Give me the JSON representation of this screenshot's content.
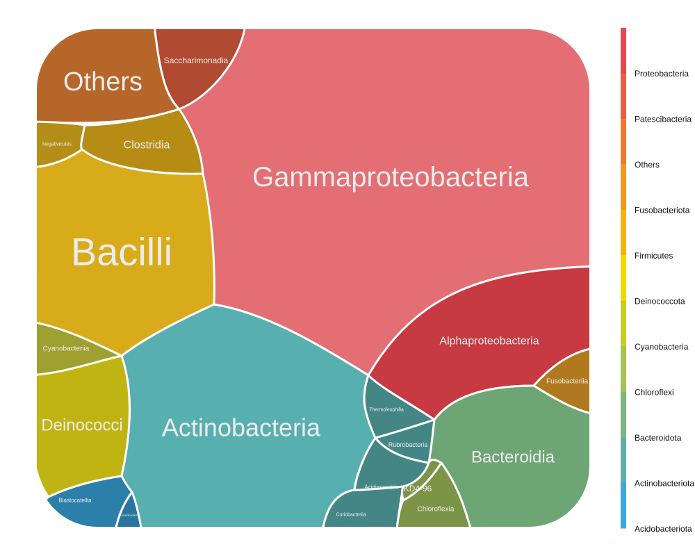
{
  "chart_data": {
    "type": "voronoi-treemap",
    "title": "",
    "cells": [
      {
        "label": "Gammaproteobacteria",
        "group": "Proteobacteria",
        "color": "#e36e74"
      },
      {
        "label": "Alphaproteobacteria",
        "group": "Proteobacteria",
        "color": "#c73a42"
      },
      {
        "label": "Saccharimonadia",
        "group": "Patescibacteria",
        "color": "#b04a30"
      },
      {
        "label": "Others",
        "group": "Others",
        "color": "#b7662a"
      },
      {
        "label": "Fusobacteriia",
        "group": "Fusobacteriota",
        "color": "#b0781f"
      },
      {
        "label": "Negativicutes",
        "group": "Firmicutes",
        "color": "#b48e17"
      },
      {
        "label": "Clostridia",
        "group": "Firmicutes",
        "color": "#b68c15"
      },
      {
        "label": "Bacilli",
        "group": "Firmicutes",
        "color": "#d8ab1a"
      },
      {
        "label": "Cyanobacteriia",
        "group": "Cyanobacteria",
        "color": "#9ea030"
      },
      {
        "label": "Deinococci",
        "group": "Deinococcota",
        "color": "#c0b412"
      },
      {
        "label": "Actinobacteria",
        "group": "Actinobacteriota",
        "color": "#58afb0"
      },
      {
        "label": "Thermoleophilia",
        "group": "Actinobacteriota",
        "color": "#448686"
      },
      {
        "label": "Rubrobacteria",
        "group": "Actinobacteriota",
        "color": "#448686"
      },
      {
        "label": "Acidimicrobiia",
        "group": "Actinobacteriota",
        "color": "#448686"
      },
      {
        "label": "Coriobacteriia",
        "group": "Actinobacteriota",
        "color": "#448686"
      },
      {
        "label": "Bacteroidia",
        "group": "Bacteroidota",
        "color": "#6ea575"
      },
      {
        "label": "KD4-96",
        "group": "Chloroflexi",
        "color": "#7b9446"
      },
      {
        "label": "Chloroflexia",
        "group": "Chloroflexi",
        "color": "#7b9446"
      },
      {
        "label": "Blastocatellia",
        "group": "Acidobacteriota",
        "color": "#2b80aa"
      },
      {
        "label": "Vicinamibacteria",
        "group": "Acidobacteriota",
        "color": "#2a75a0"
      }
    ],
    "legend": {
      "position": "right",
      "entries": [
        "Proteobacteria",
        "Patescibacteria",
        "Others",
        "Fusobacteriota",
        "Firmicutes",
        "Deinococcota",
        "Cyanobacteria",
        "Chloroflexi",
        "Bacteroidota",
        "Actinobacteriota",
        "Acidobacteriota"
      ],
      "colors": [
        "#e8474e",
        "#e85e47",
        "#ec7b32",
        "#ee9a22",
        "#edb614",
        "#f0d800",
        "#c9cc24",
        "#a2c355",
        "#7fb57e",
        "#5fafa8",
        "#3aa9dd"
      ]
    }
  }
}
